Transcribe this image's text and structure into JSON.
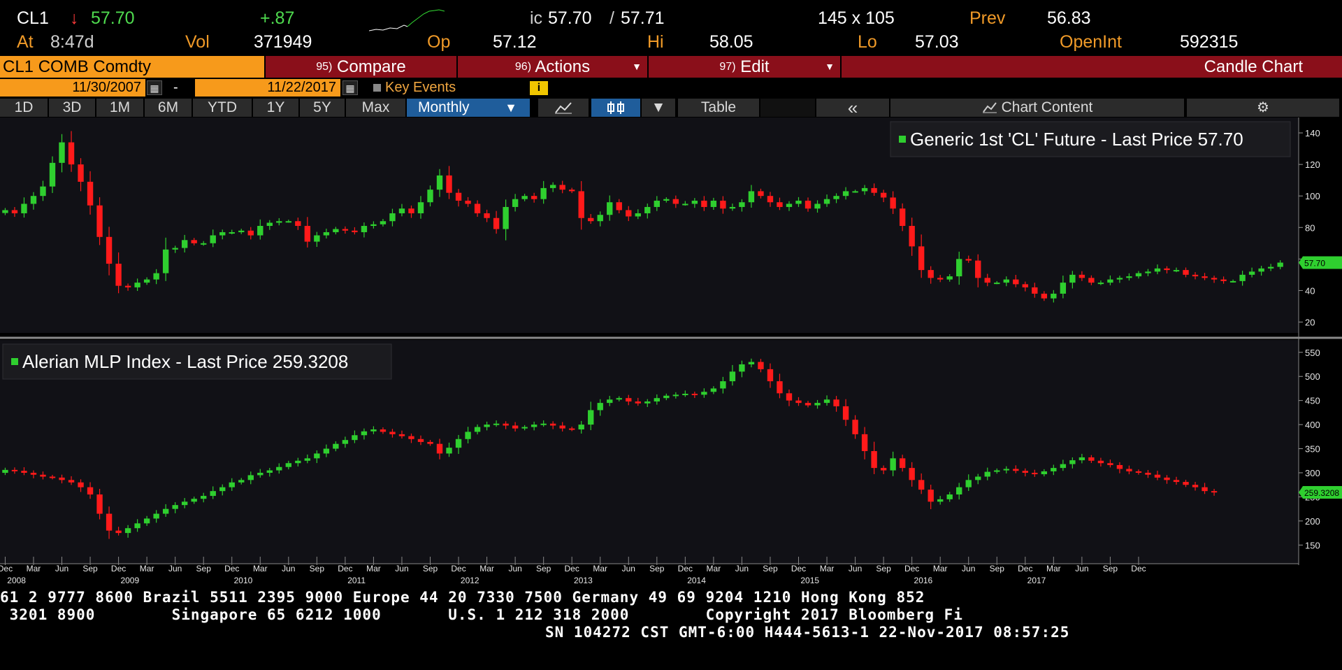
{
  "quote": {
    "ticker": "CL1",
    "arrow": "↓",
    "last": "57.70",
    "change": "+.87",
    "bid_ask_prefix": "ic",
    "bid": "57.70",
    "ask_sep": "/",
    "ask": "57.71",
    "size": "145 x 105",
    "prev_label": "Prev",
    "prev": "56.83",
    "at_label": "At",
    "time": "8:47d",
    "vol_label": "Vol",
    "vol": "371949",
    "op_label": "Op",
    "op": "57.12",
    "hi_label": "Hi",
    "hi": "58.05",
    "lo_label": "Lo",
    "lo": "57.03",
    "oi_label": "OpenInt",
    "oi": "592315"
  },
  "command_bar": {
    "security": "CL1 COMB Comdty",
    "compare_num": "95)",
    "compare": "Compare",
    "actions_num": "96)",
    "actions": "Actions",
    "edit_num": "97)",
    "edit": "Edit",
    "title": "Candle Chart"
  },
  "date_range": {
    "start": "11/30/2007",
    "sep": "-",
    "end": "11/22/2017",
    "key_events": "Key Events",
    "info": "i"
  },
  "tabs": {
    "d1": "1D",
    "d3": "3D",
    "m1": "1M",
    "m6": "6M",
    "ytd": "YTD",
    "y1": "1Y",
    "y5": "5Y",
    "max": "Max",
    "period": "Monthly",
    "line_icon": "line-chart-icon",
    "candle_icon": "candle-chart-icon",
    "table": "Table",
    "collapse": "«",
    "chart_content": "Chart Content",
    "settings_icon": "gear-icon"
  },
  "colors": {
    "up": "#2fcf2f",
    "down": "#ff1a1a",
    "orange": "#f79a1b",
    "panel_bg": "#111116"
  },
  "chart_data": [
    {
      "type": "candlestick",
      "legend": "Generic 1st 'CL' Future - Last Price 57.70",
      "last_label": "57.70",
      "y_ticks": [
        20,
        40,
        60,
        80,
        100,
        120,
        140
      ],
      "ylim": [
        14,
        148
      ],
      "values": [
        91,
        89,
        95,
        100,
        106,
        121,
        134,
        120,
        109,
        94,
        74,
        57,
        43,
        42,
        45,
        47,
        51,
        66,
        67,
        72,
        70,
        70,
        75,
        77,
        77,
        78,
        75,
        81,
        83,
        84,
        84,
        81,
        71,
        75,
        77,
        79,
        78,
        77,
        81,
        82,
        84,
        89,
        92,
        89,
        96,
        104,
        113,
        102,
        97,
        95,
        89,
        86,
        79,
        93,
        98,
        100,
        98,
        105,
        107,
        104,
        103,
        86,
        84,
        88,
        96,
        91,
        87,
        89,
        93,
        97,
        98,
        95,
        95,
        97,
        93,
        97,
        92,
        93,
        96,
        103,
        100,
        96,
        93,
        95,
        97,
        92,
        95,
        98,
        100,
        103,
        103,
        105,
        102,
        99,
        92,
        81,
        68,
        53,
        48,
        47,
        49,
        60,
        59,
        48,
        45,
        45,
        47,
        44,
        42,
        38,
        35,
        38,
        45,
        50,
        48,
        45,
        45,
        47,
        48,
        49,
        51,
        52,
        54,
        53,
        53,
        50,
        49,
        48,
        47,
        46,
        46,
        50,
        52,
        54,
        55,
        57.7
      ]
    },
    {
      "type": "candlestick",
      "legend": "Alerian MLP Index - Last Price 259.3208",
      "last_label": "259.3208",
      "y_ticks": [
        150,
        200,
        250,
        300,
        350,
        400,
        450,
        500,
        550
      ],
      "ylim": [
        120,
        570
      ],
      "values": [
        306,
        304,
        300,
        296,
        292,
        290,
        285,
        280,
        270,
        255,
        215,
        180,
        175,
        185,
        195,
        205,
        215,
        225,
        233,
        240,
        246,
        252,
        262,
        270,
        280,
        285,
        295,
        300,
        305,
        312,
        320,
        325,
        330,
        340,
        350,
        360,
        368,
        378,
        386,
        390,
        385,
        380,
        376,
        370,
        364,
        360,
        340,
        352,
        370,
        385,
        395,
        400,
        402,
        398,
        392,
        395,
        400,
        402,
        398,
        392,
        390,
        400,
        430,
        445,
        452,
        455,
        448,
        444,
        448,
        455,
        460,
        462,
        464,
        462,
        468,
        475,
        490,
        510,
        525,
        530,
        515,
        490,
        465,
        450,
        445,
        440,
        445,
        452,
        438,
        410,
        380,
        345,
        310,
        305,
        330,
        310,
        285,
        265,
        240,
        245,
        255,
        270,
        285,
        292,
        302,
        305,
        308,
        304,
        300,
        297,
        303,
        310,
        318,
        326,
        332,
        325,
        320,
        316,
        308,
        303,
        300,
        296,
        290,
        285,
        281,
        275,
        270,
        262,
        259.3
      ]
    },
    {
      "type": "axis",
      "x_tick_months": [
        "Dec",
        "Mar",
        "Jun",
        "Sep",
        "Dec",
        "Mar",
        "Jun",
        "Sep",
        "Dec",
        "Mar",
        "Jun",
        "Sep",
        "Dec",
        "Mar",
        "Jun",
        "Sep",
        "Dec",
        "Mar",
        "Jun",
        "Sep",
        "Dec",
        "Mar",
        "Jun",
        "Sep",
        "Dec",
        "Mar",
        "Jun",
        "Sep",
        "Dec",
        "Mar",
        "Jun",
        "Sep",
        "Dec",
        "Mar",
        "Jun",
        "Sep",
        "Dec",
        "Mar",
        "Jun",
        "Sep",
        "Dec"
      ],
      "x_tick_years": [
        "2008",
        "2009",
        "2010",
        "2011",
        "2012",
        "2013",
        "2014",
        "2015",
        "2016",
        "2017"
      ]
    }
  ],
  "footer": {
    "line1": "61 2 9777 8600 Brazil 5511 2395 9000 Europe 44 20 7330 7500 Germany 49 69 9204 1210 Hong Kong 852",
    "line2": " 3201 8900        Singapore 65 6212 1000       U.S. 1 212 318 2000        Copyright 2017 Bloomberg Fi",
    "line3": "SN 104272 CST  GMT-6:00 H444-5613-1 22-Nov-2017 08:57:25"
  }
}
